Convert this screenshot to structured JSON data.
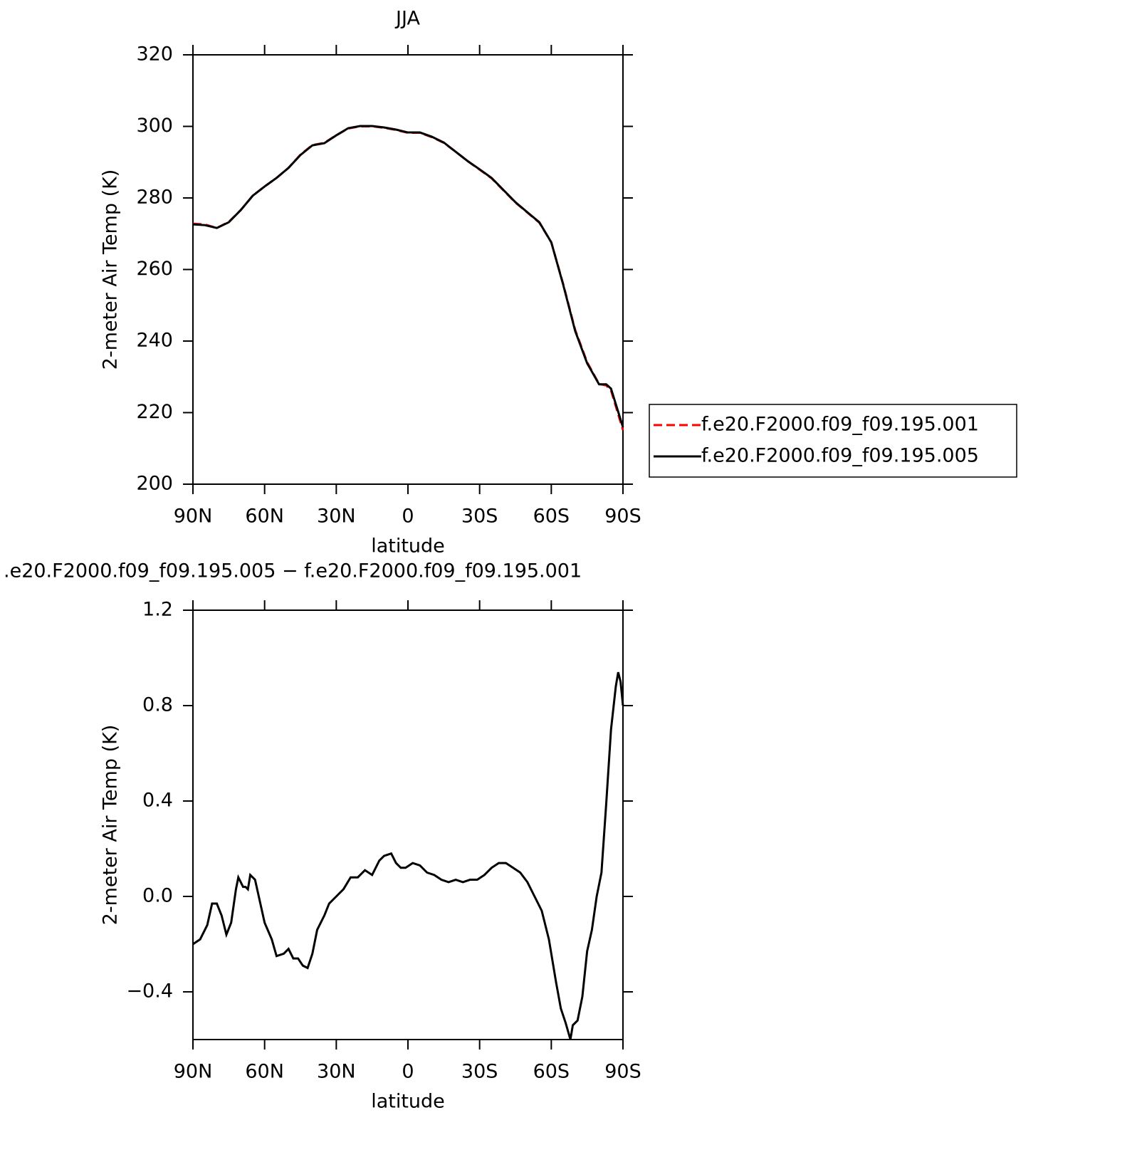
{
  "chart_data": [
    {
      "type": "line",
      "title": "JJA",
      "xlabel": "latitude",
      "ylabel": "2-meter Air Temp (K)",
      "x": [
        90,
        85,
        80,
        75,
        70,
        65,
        60,
        55,
        50,
        45,
        40,
        35,
        30,
        25,
        20,
        15,
        10,
        5,
        0,
        -5,
        -10,
        -15,
        -20,
        -25,
        -30,
        -35,
        -40,
        -45,
        -50,
        -55,
        -60,
        -65,
        -70,
        -75,
        -80,
        -83,
        -85,
        -90
      ],
      "series": [
        {
          "name": "f.e20.F2000.f09_f09.195.001",
          "color": "#ff0000",
          "dashed": true,
          "values": [
            272.8,
            272.6,
            271.6,
            273.3,
            276.6,
            280.6,
            283.2,
            285.6,
            288.4,
            292.1,
            294.8,
            295.4,
            297.5,
            299.4,
            300.0,
            300.0,
            299.6,
            299.0,
            298.2,
            298.2,
            297.0,
            295.4,
            292.9,
            290.3,
            287.9,
            285.5,
            282.1,
            278.7,
            275.9,
            273.1,
            267.6,
            255.9,
            243.1,
            234.1,
            228.0,
            227.6,
            226.2,
            215.1
          ]
        },
        {
          "name": "f.e20.F2000.f09_f09.195.005",
          "color": "#000000",
          "dashed": false,
          "values": [
            272.6,
            272.4,
            271.6,
            273.2,
            276.6,
            280.6,
            283.2,
            285.6,
            288.4,
            292.0,
            294.7,
            295.3,
            297.5,
            299.5,
            300.1,
            300.1,
            299.7,
            299.1,
            298.3,
            298.3,
            297.1,
            295.5,
            292.9,
            290.3,
            288.0,
            285.6,
            282.2,
            278.8,
            276.0,
            273.2,
            267.6,
            255.7,
            242.8,
            233.8,
            227.9,
            227.9,
            226.7,
            215.9
          ]
        }
      ],
      "xlim": [
        90,
        -90
      ],
      "xticks": [
        {
          "value": 90,
          "label": "90N"
        },
        {
          "value": 60,
          "label": "60N"
        },
        {
          "value": 30,
          "label": "30N"
        },
        0,
        {
          "value": -30,
          "label": "30S"
        },
        {
          "value": -60,
          "label": "60S"
        },
        {
          "value": -90,
          "label": "90S"
        }
      ],
      "ylim": [
        200,
        320
      ],
      "yticks": [
        200,
        220,
        240,
        260,
        280,
        300,
        320
      ],
      "legend": "right"
    },
    {
      "type": "line",
      "title": ".e20.F2000.f09_f09.195.005 − f.e20.F2000.f09_f09.195.001",
      "xlabel": "latitude",
      "ylabel": "2-meter Air Temp (K)",
      "x": [
        90,
        87,
        84,
        82,
        80,
        78,
        76,
        74,
        72,
        71,
        69,
        68,
        67,
        66,
        64,
        62,
        60,
        57,
        55,
        52,
        50,
        48,
        46,
        44,
        42,
        40,
        38,
        35,
        33,
        30,
        27,
        24,
        21,
        18,
        15,
        12,
        10,
        7,
        5,
        3,
        1,
        -2,
        -5,
        -8,
        -11,
        -14,
        -17,
        -20,
        -23,
        -26,
        -29,
        -32,
        -35,
        -38,
        -41,
        -44,
        -47,
        -50,
        -53,
        -56,
        -59,
        -62,
        -64,
        -66,
        -68,
        -69,
        -71,
        -73,
        -75,
        -77,
        -79,
        -81,
        -83,
        -85,
        -87,
        -88,
        -89,
        -90
      ],
      "values": [
        -0.2,
        -0.18,
        -0.12,
        -0.03,
        -0.03,
        -0.08,
        -0.16,
        -0.11,
        0.03,
        0.08,
        0.04,
        0.04,
        0.03,
        0.09,
        0.07,
        -0.02,
        -0.11,
        -0.18,
        -0.25,
        -0.24,
        -0.22,
        -0.26,
        -0.26,
        -0.29,
        -0.3,
        -0.24,
        -0.14,
        -0.08,
        -0.03,
        0.0,
        0.03,
        0.08,
        0.08,
        0.11,
        0.09,
        0.15,
        0.17,
        0.18,
        0.14,
        0.12,
        0.12,
        0.14,
        0.13,
        0.1,
        0.09,
        0.07,
        0.06,
        0.07,
        0.06,
        0.07,
        0.07,
        0.09,
        0.12,
        0.14,
        0.14,
        0.12,
        0.1,
        0.06,
        0.0,
        -0.06,
        -0.18,
        -0.36,
        -0.47,
        -0.53,
        -0.6,
        -0.54,
        -0.52,
        -0.42,
        -0.23,
        -0.14,
        0.0,
        0.1,
        0.39,
        0.7,
        0.88,
        0.94,
        0.9,
        0.8
      ],
      "color": "#000000",
      "xlim": [
        90,
        -90
      ],
      "xticks": [
        {
          "value": 90,
          "label": "90N"
        },
        {
          "value": 60,
          "label": "60N"
        },
        {
          "value": 30,
          "label": "30N"
        },
        0,
        {
          "value": -30,
          "label": "30S"
        },
        {
          "value": -60,
          "label": "60S"
        },
        {
          "value": -90,
          "label": "90S"
        }
      ],
      "ylim": [
        -0.6,
        1.2
      ],
      "yticks": [
        {
          "value": -0.4,
          "label": "−0.4"
        },
        {
          "value": 0,
          "label": "0.0"
        },
        0.4,
        0.8,
        1.2
      ]
    }
  ]
}
